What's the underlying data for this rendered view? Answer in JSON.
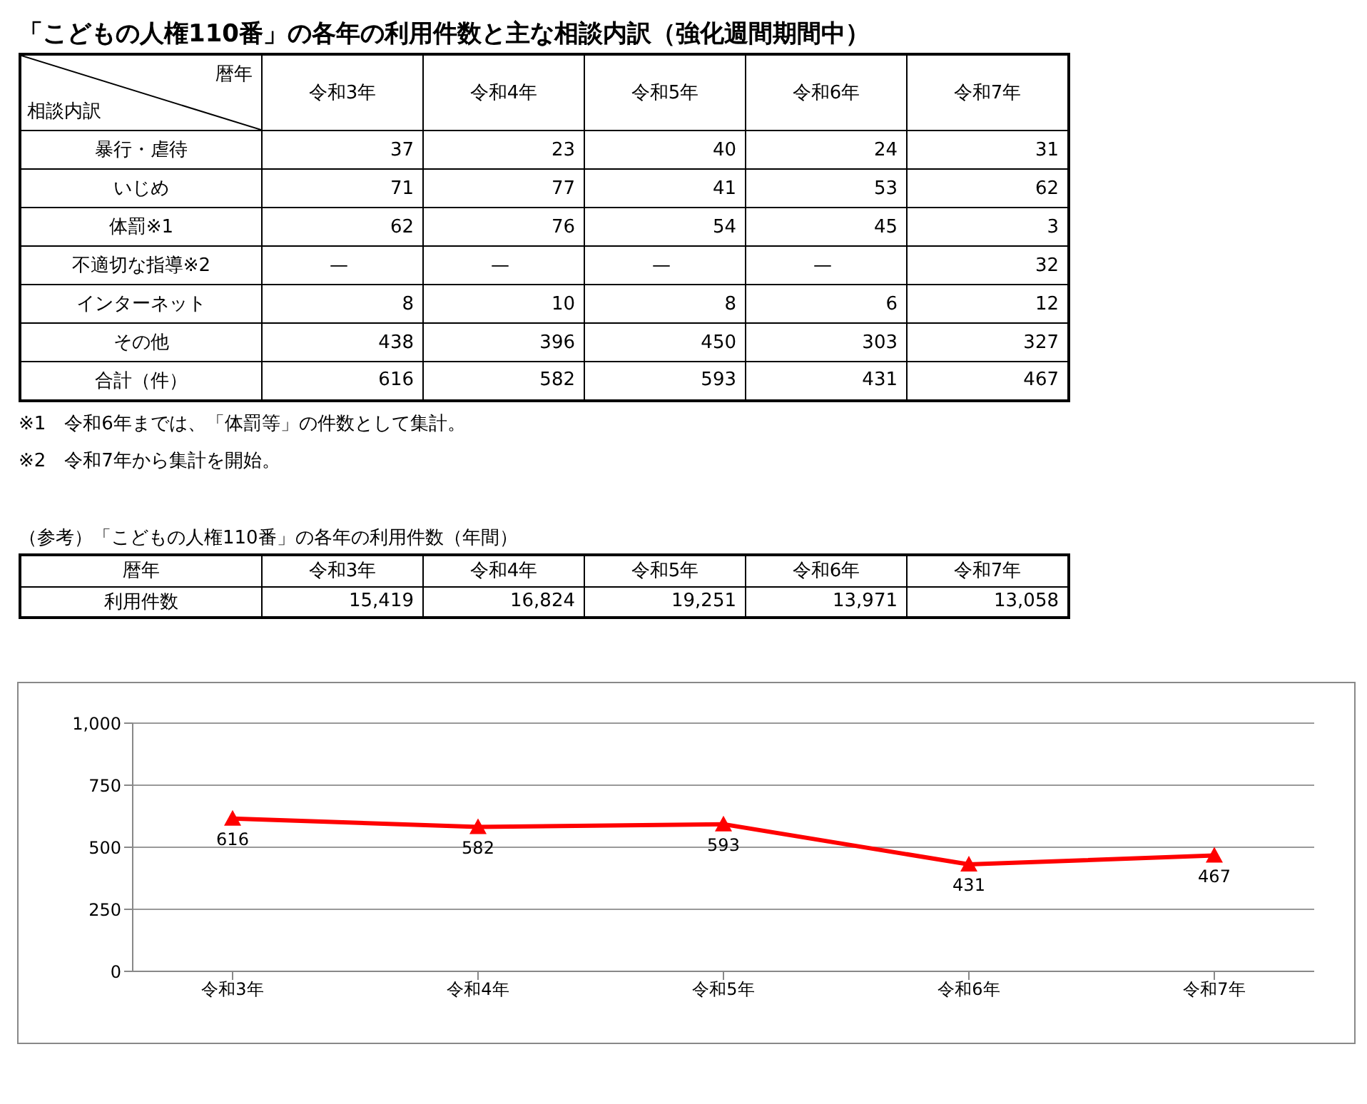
{
  "chart_data": [
    {
      "type": "other",
      "title": "「こどもの人権110番」の各年の利用件数と主な相談内訳（強化週間期間中）",
      "xlabel": "暦年",
      "ylabel": "相談内訳",
      "categories": [
        "令和3年",
        "令和4年",
        "令和5年",
        "令和6年",
        "令和7年"
      ],
      "y_categories": [
        "暴行・虐待",
        "いじめ",
        "体罰※1",
        "不適切な指導※2",
        "インターネット",
        "その他",
        "合計（件）"
      ],
      "cell_labels": [
        [
          "37",
          "23",
          "40",
          "24",
          "31"
        ],
        [
          "71",
          "77",
          "41",
          "53",
          "62"
        ],
        [
          "62",
          "76",
          "54",
          "45",
          "3"
        ],
        [
          "—",
          "—",
          "—",
          "—",
          "32"
        ],
        [
          "8",
          "10",
          "8",
          "6",
          "12"
        ],
        [
          "438",
          "396",
          "450",
          "303",
          "327"
        ],
        [
          "616",
          "582",
          "593",
          "431",
          "467"
        ]
      ],
      "annotations": [
        "※1　令和6年までは、「体罰等」の件数として集計。",
        "※2　令和7年から集計を開始。"
      ]
    },
    {
      "type": "other",
      "title": "（参考）「こどもの人権110番」の各年の利用件数（年間）",
      "xlabel": "暦年",
      "categories": [
        "令和3年",
        "令和4年",
        "令和5年",
        "令和6年",
        "令和7年"
      ],
      "y_categories": [
        "利用件数"
      ],
      "cell_labels": [
        [
          "15,419",
          "16,824",
          "19,251",
          "13,971",
          "13,058"
        ]
      ]
    },
    {
      "type": "line",
      "categories": [
        "令和3年",
        "令和4年",
        "令和5年",
        "令和6年",
        "令和7年"
      ],
      "values": [
        616,
        582,
        593,
        431,
        467
      ],
      "color": "#ff0000",
      "ylim": [
        0,
        1000
      ],
      "yticks": [
        0,
        250,
        500,
        750,
        {
          "value": 1000,
          "label": "1,000"
        }
      ],
      "grid": "y",
      "marker": "triangle",
      "data_labels": true
    }
  ]
}
